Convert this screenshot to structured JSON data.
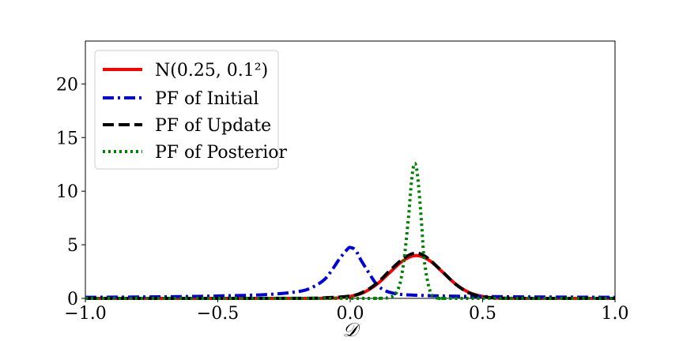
{
  "chart_data": {
    "type": "line",
    "xlabel": "𝒟",
    "ylabel": "",
    "xlim": [
      -1.0,
      1.0
    ],
    "ylim": [
      0,
      24
    ],
    "x_ticks": [
      "−1.0",
      "−0.5",
      "0.0",
      "0.5",
      "1.0"
    ],
    "x_tick_values": [
      -1.0,
      -0.5,
      0.0,
      0.5,
      1.0
    ],
    "y_ticks": [
      "0",
      "5",
      "10",
      "15",
      "20"
    ],
    "y_tick_values": [
      0,
      5,
      10,
      15,
      20
    ],
    "grid": false,
    "legend_position": "top-left",
    "series": [
      {
        "name": "N(0.25, 0.1²)",
        "color": "#ff0000",
        "style": "solid",
        "x": [
          -1.0,
          -0.6,
          -0.2,
          -0.1,
          -0.05,
          0.0,
          0.05,
          0.1,
          0.15,
          0.2,
          0.25,
          0.3,
          0.35,
          0.4,
          0.45,
          0.5,
          0.55,
          0.6,
          0.7,
          1.0
        ],
        "y": [
          0,
          0,
          0.0,
          0.01,
          0.04,
          0.18,
          0.54,
          1.3,
          2.42,
          3.52,
          3.99,
          3.52,
          2.42,
          1.3,
          0.54,
          0.18,
          0.04,
          0.01,
          0,
          0
        ]
      },
      {
        "name": "PF of Initial",
        "color": "#0000dd",
        "style": "dashdot",
        "x": [
          -1.0,
          -0.8,
          -0.6,
          -0.4,
          -0.3,
          -0.2,
          -0.15,
          -0.1,
          -0.07,
          -0.04,
          -0.01,
          0.0,
          0.02,
          0.04,
          0.07,
          0.1,
          0.13,
          0.16,
          0.2,
          0.3,
          0.4,
          0.6,
          0.8,
          1.0
        ],
        "y": [
          0.1,
          0.13,
          0.18,
          0.28,
          0.38,
          0.62,
          0.95,
          1.7,
          2.6,
          3.7,
          4.6,
          4.75,
          4.5,
          3.6,
          2.4,
          1.3,
          0.75,
          0.5,
          0.35,
          0.25,
          0.2,
          0.15,
          0.12,
          0.1
        ]
      },
      {
        "name": "PF of Update",
        "color": "#000000",
        "style": "dashed",
        "x": [
          -1.0,
          -0.6,
          -0.2,
          -0.1,
          0.0,
          0.05,
          0.1,
          0.15,
          0.2,
          0.24,
          0.27,
          0.3,
          0.35,
          0.4,
          0.45,
          0.5,
          0.55,
          0.6,
          0.8,
          1.0
        ],
        "y": [
          0,
          0,
          0.01,
          0.05,
          0.22,
          0.6,
          1.4,
          2.6,
          3.7,
          4.2,
          4.1,
          3.6,
          2.45,
          1.28,
          0.5,
          0.15,
          0.04,
          0.01,
          0,
          0
        ]
      },
      {
        "name": "PF of Posterior",
        "color": "#008000",
        "style": "dotted",
        "x": [
          -1.0,
          0.0,
          0.1,
          0.15,
          0.18,
          0.2,
          0.22,
          0.23,
          0.24,
          0.25,
          0.26,
          0.27,
          0.28,
          0.3,
          0.32,
          0.35,
          0.4,
          1.0
        ],
        "y": [
          0,
          0,
          0,
          0.1,
          0.8,
          3.0,
          7.5,
          10.5,
          12.4,
          12.2,
          10.0,
          6.8,
          3.5,
          0.8,
          0.1,
          0,
          0,
          0
        ]
      }
    ]
  }
}
